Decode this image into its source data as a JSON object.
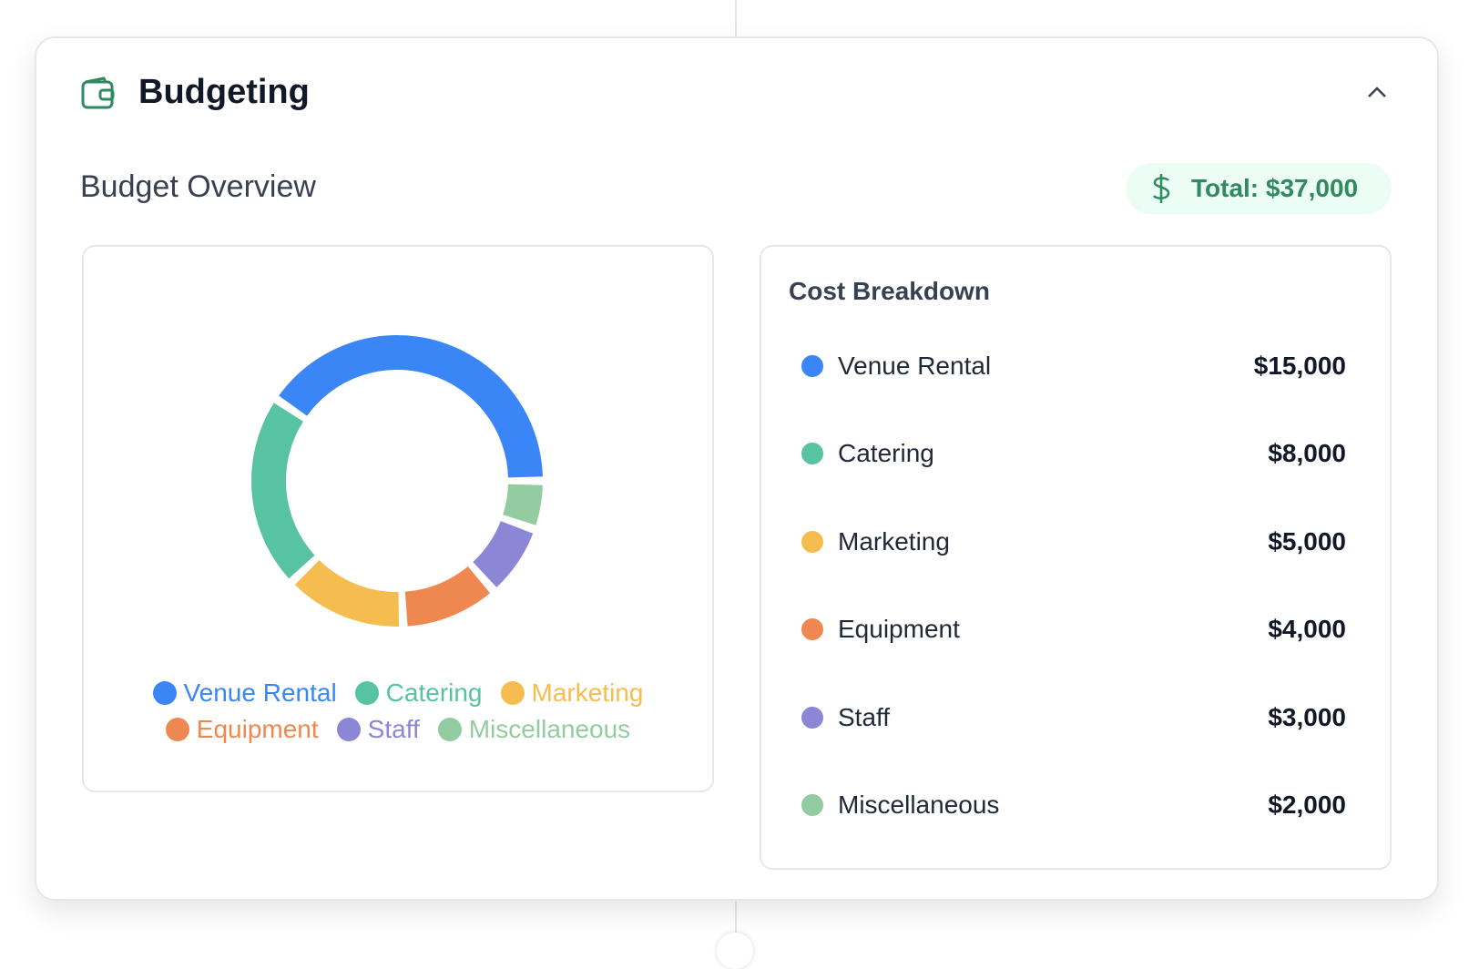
{
  "header": {
    "title": "Budgeting"
  },
  "overview": {
    "title": "Budget Overview",
    "total": "Total: $37,000"
  },
  "chart_data": {
    "type": "doughnut",
    "categories": [
      "Venue Rental",
      "Catering",
      "Marketing",
      "Equipment",
      "Staff",
      "Miscellaneous"
    ],
    "values": [
      15000,
      8000,
      5000,
      4000,
      3000,
      2000
    ],
    "value_labels": [
      "$15,000",
      "$8,000",
      "$5,000",
      "$4,000",
      "$3,000",
      "$2,000"
    ],
    "colors": [
      "#3b86f6",
      "#58c3a0",
      "#f5bd4f",
      "#ef8850",
      "#8b86d6",
      "#93cca0"
    ],
    "legend": "bottom"
  },
  "breakdown": {
    "title": "Cost Breakdown"
  }
}
